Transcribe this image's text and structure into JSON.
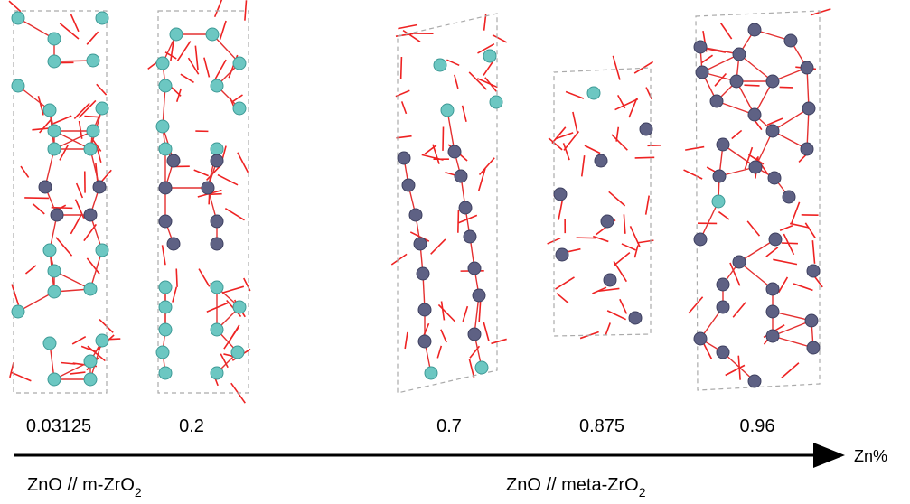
{
  "panels": [
    {
      "label": "0.03125"
    },
    {
      "label": "0.2"
    },
    {
      "label": "0.7"
    },
    {
      "label": "0.875"
    },
    {
      "label": "0.96"
    }
  ],
  "axis_label": "Zn%",
  "groups": [
    {
      "text": "ZnO // m-ZrO",
      "subscript": "2"
    },
    {
      "text": "ZnO // meta-ZrO",
      "subscript": "2"
    }
  ]
}
